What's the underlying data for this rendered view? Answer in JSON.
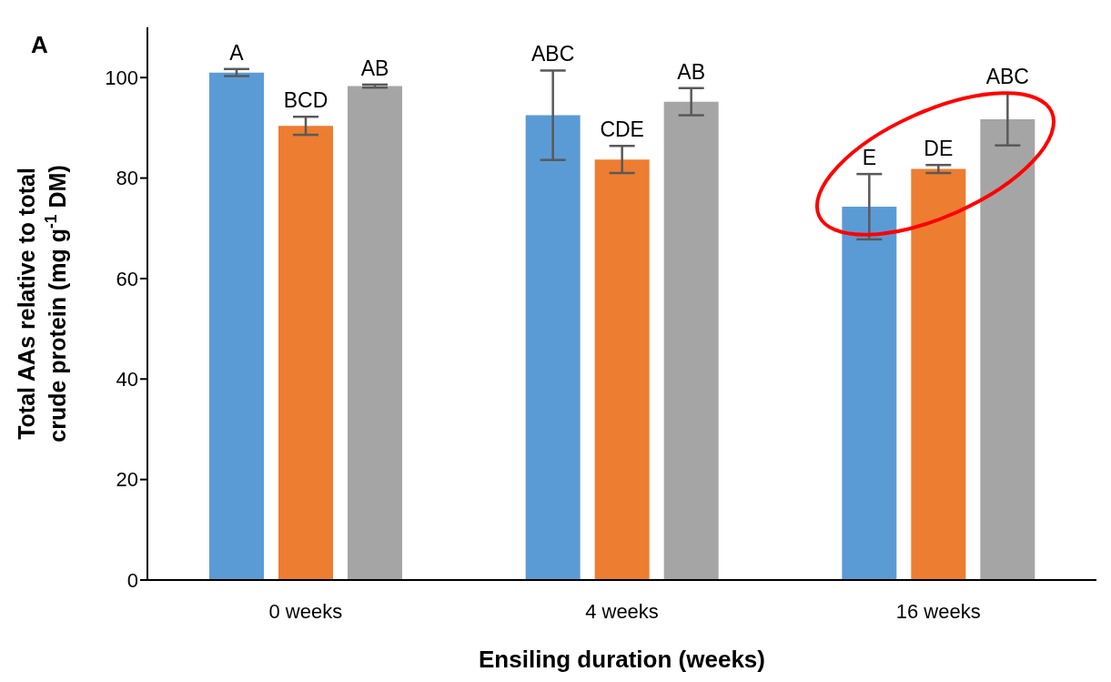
{
  "chart_data": {
    "type": "bar",
    "title": "A",
    "xlabel": "Ensiling duration (weeks)",
    "ylabel": "Total AAs relative to total crude protein (mg g$^{-1}$ DM)",
    "categories": [
      "0 weeks",
      "4 weeks",
      "16 weeks"
    ],
    "series": [
      {
        "color": "#5b9bd5",
        "values": [
          101.0,
          92.5,
          74.3
        ],
        "errors": [
          0.7,
          8.9,
          6.5
        ],
        "value_labels": [
          "A",
          "ABC",
          "E"
        ]
      },
      {
        "color": "#ed7d31",
        "values": [
          90.4,
          83.7,
          81.8
        ],
        "errors": [
          1.8,
          2.7,
          0.8
        ],
        "value_labels": [
          "BCD",
          "CDE",
          "DE"
        ]
      },
      {
        "color": "#a5a5a5",
        "values": [
          98.3,
          95.2,
          91.7
        ],
        "errors": [
          0.3,
          2.7,
          5.2
        ],
        "value_labels": [
          "AB",
          "AB",
          "ABC"
        ]
      }
    ],
    "ylim": [
      0,
      110
    ],
    "yticks": [
      0,
      20,
      40,
      60,
      80,
      100
    ],
    "grid": false,
    "legend": false
  }
}
